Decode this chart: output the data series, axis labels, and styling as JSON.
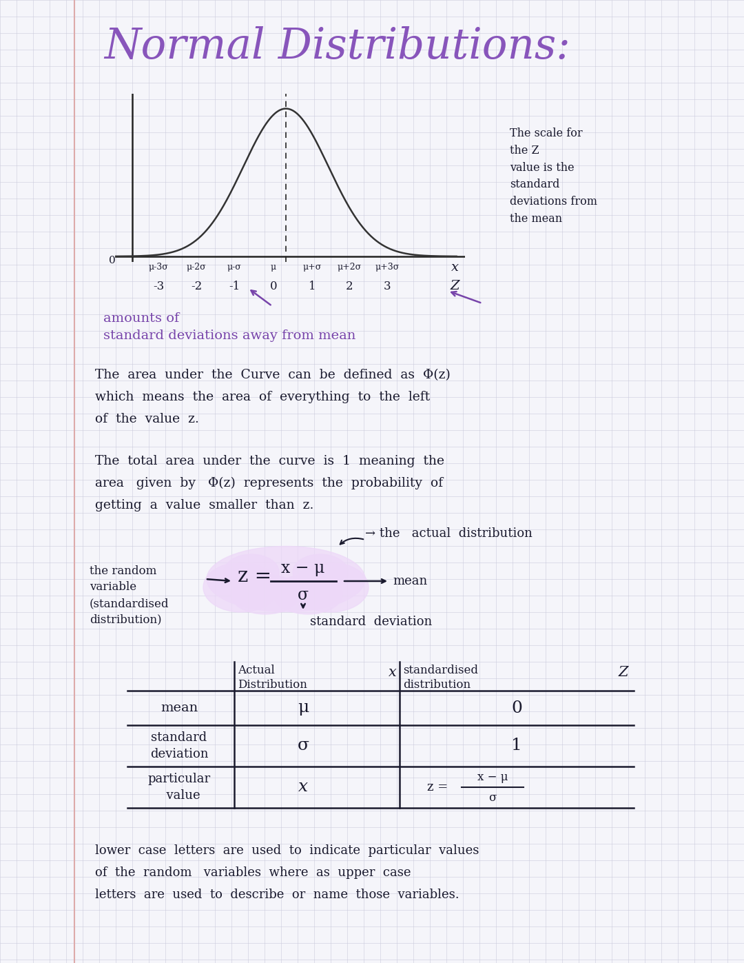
{
  "title": "Normal Distributions:",
  "title_color": "#8855BB",
  "bg_color": "#F5F5FA",
  "grid_color": "#CBCBDC",
  "text_color_dark": "#1a1a2e",
  "text_color_purple": "#7744AA",
  "margin_line_color": "#BBBBCC",
  "note_z_scale": "The scale for\nthe Z\nvalue is the\nstandard\ndeviations from\nthe mean",
  "x_labels_top": [
    "μ-3σ",
    "μ-2σ",
    "μ-σ",
    "μ",
    "μ+σ",
    "μ+2σ",
    "μ+3σ"
  ],
  "x_labels_bot": [
    "-3",
    "-2",
    "-1",
    "0",
    "1",
    "2",
    "3"
  ],
  "para1_line1": "The  area  under  the  Curve  can  be  defined  as  Φ(z)",
  "para1_line2": "which  means  the  area  of  everything  to  the  left",
  "para1_line3": "of  the  value  z.",
  "para2_line1": "The  total  area  under  the  curve  is  1  meaning  the",
  "para2_line2": "area   given  by   Φ(z)  represents  the  probability  of",
  "para2_line3": "getting  a  value  smaller  than  z.",
  "label_random_var": "the random\nvariable\n(standardised\ndistribution)",
  "table_header_actual": "Actual\nDistribution",
  "table_header_x": "x",
  "table_header_std": "standardised\ndistribution",
  "table_header_z": "Z",
  "row1_label": "mean",
  "row1_actual": "μ",
  "row1_std": "0",
  "row2_label": "standard\ndeviation",
  "row2_actual": "σ",
  "row2_std": "1",
  "row3_label": "particular\n  value",
  "row3_actual": "x",
  "footer_line1": "lower  case  letters  are  used  to  indicate  particular  values",
  "footer_line2": "of  the  random   variables  where  as  upper  case",
  "footer_line3": "letters  are  used  to  describe  or  name  those  variables."
}
